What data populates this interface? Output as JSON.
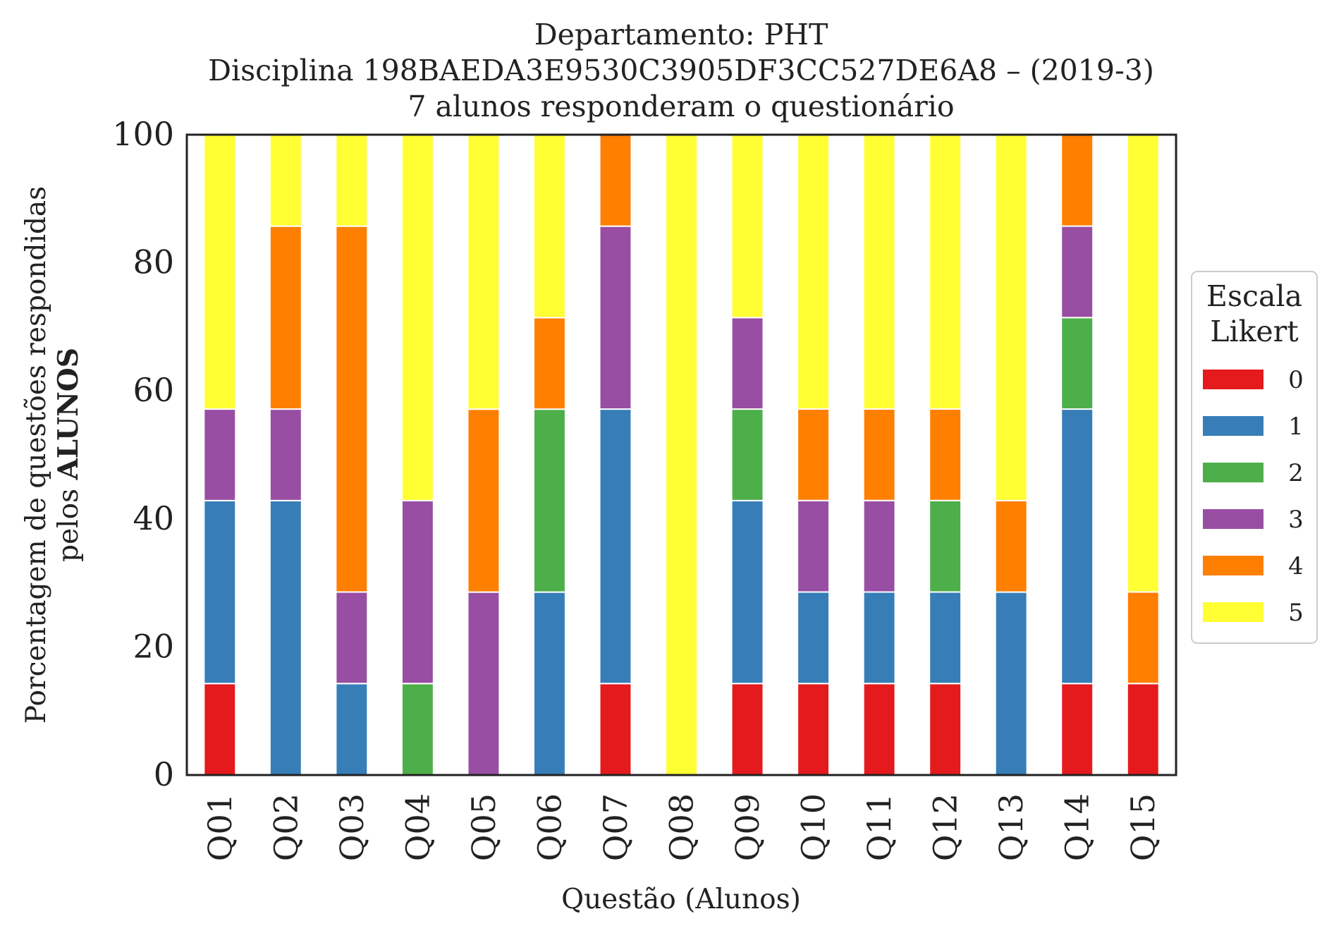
{
  "chart_data": {
    "type": "bar",
    "stacked": true,
    "title_lines": [
      "Departamento: PHT",
      "Disciplina 198BAEDA3E9530C3905DF3CC527DE6A8 – (2019-3)",
      "7 alunos responderam o questionário"
    ],
    "xlabel": "Questão (Alunos)",
    "ylabel_line1": "Porcentagem de questões respondidas",
    "ylabel_line2_prefix": "pelos ",
    "ylabel_line2_bold": "ALUNOS",
    "ylim": [
      0,
      100
    ],
    "yticks": [
      0,
      20,
      40,
      60,
      80,
      100
    ],
    "grid": false,
    "legend": {
      "title_lines": [
        "Escala",
        "Likert"
      ],
      "placement": "right-center"
    },
    "categories": [
      "Q01",
      "Q02",
      "Q03",
      "Q04",
      "Q05",
      "Q06",
      "Q07",
      "Q08",
      "Q09",
      "Q10",
      "Q11",
      "Q12",
      "Q13",
      "Q14",
      "Q15"
    ],
    "series": [
      {
        "name": "0",
        "color": "#e41a1c",
        "values": [
          14.29,
          0,
          0,
          0,
          0,
          0,
          14.29,
          0,
          14.29,
          14.29,
          14.29,
          14.29,
          0,
          14.29,
          14.29
        ]
      },
      {
        "name": "1",
        "color": "#377eb8",
        "values": [
          28.57,
          42.86,
          14.29,
          0,
          0,
          28.57,
          42.86,
          0,
          28.57,
          14.29,
          14.29,
          14.29,
          28.57,
          42.86,
          0
        ]
      },
      {
        "name": "2",
        "color": "#4daf4a",
        "values": [
          0,
          0,
          0,
          14.29,
          0,
          28.57,
          0,
          0,
          14.29,
          0,
          0,
          14.29,
          0,
          14.29,
          0
        ]
      },
      {
        "name": "3",
        "color": "#984ea3",
        "values": [
          14.29,
          14.29,
          14.29,
          28.57,
          28.57,
          0,
          28.57,
          0,
          14.29,
          14.29,
          14.29,
          0,
          0,
          14.29,
          0
        ]
      },
      {
        "name": "4",
        "color": "#ff7f00",
        "values": [
          0,
          28.57,
          57.14,
          0,
          28.57,
          14.29,
          14.29,
          0,
          0,
          14.29,
          14.29,
          14.29,
          14.29,
          14.29,
          14.29
        ]
      },
      {
        "name": "5",
        "color": "#ffff33",
        "values": [
          42.86,
          14.29,
          14.29,
          57.14,
          42.86,
          28.57,
          0,
          100,
          28.57,
          42.86,
          42.86,
          42.86,
          57.14,
          0,
          71.43
        ]
      }
    ]
  }
}
